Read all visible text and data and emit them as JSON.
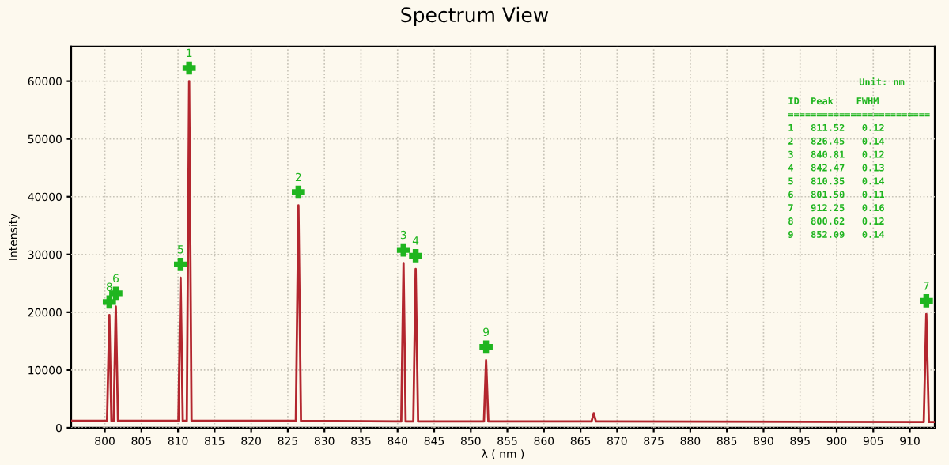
{
  "chart_data": {
    "type": "line",
    "title": "Spectrum View",
    "xlabel": "λ ( nm )",
    "ylabel": "Intensity",
    "xlim": [
      795.4,
      913.4
    ],
    "xticks": [
      800,
      805,
      810,
      815,
      820,
      825,
      830,
      835,
      840,
      845,
      850,
      855,
      860,
      865,
      870,
      875,
      880,
      885,
      890,
      895,
      900,
      905,
      910
    ],
    "ylim": [
      0,
      66000
    ],
    "yticks": [
      0,
      10000,
      20000,
      30000,
      40000,
      50000,
      60000
    ],
    "grid": true,
    "marker": "none",
    "line_style": "solid",
    "series": [
      {
        "color": "#b3262e",
        "x": [
          795.4,
          800.3,
          800.62,
          800.9,
          801.2,
          801.5,
          801.8,
          810.05,
          810.35,
          810.65,
          811.2,
          811.52,
          811.85,
          826.1,
          826.45,
          826.8,
          840.5,
          840.81,
          841.1,
          842.15,
          842.47,
          842.8,
          851.8,
          852.09,
          852.4,
          866.5,
          866.8,
          867.1,
          911.9,
          912.25,
          912.6,
          913.4
        ],
        "values": [
          1200,
          1200,
          19500,
          1200,
          1200,
          21000,
          1200,
          1200,
          26000,
          1200,
          1200,
          60000,
          1200,
          1200,
          38500,
          1200,
          1100,
          28500,
          1100,
          1100,
          27500,
          1100,
          1100,
          11700,
          1100,
          1100,
          2500,
          1100,
          1000,
          19700,
          1000,
          1000
        ]
      }
    ],
    "annotations": [
      {
        "text": "1",
        "x": 811.52,
        "y": 60000
      },
      {
        "text": "2",
        "x": 826.45,
        "y": 38500
      },
      {
        "text": "3",
        "x": 840.81,
        "y": 28500
      },
      {
        "text": "4",
        "x": 842.47,
        "y": 27500
      },
      {
        "text": "5",
        "x": 810.35,
        "y": 26000
      },
      {
        "text": "6",
        "x": 801.5,
        "y": 21000
      },
      {
        "text": "7",
        "x": 912.25,
        "y": 19700
      },
      {
        "text": "8",
        "x": 800.62,
        "y": 19500
      },
      {
        "text": "9",
        "x": 852.09,
        "y": 11700
      },
      "Unit: nm",
      "ID  Peak    FWHM",
      "=========================",
      "1   811.52   0.12",
      "2   826.45   0.14",
      "3   840.81   0.12",
      "4   842.47   0.13",
      "5   810.35   0.14",
      "6   801.50   0.11",
      "7   912.25   0.16",
      "8   800.62   0.12",
      "9   852.09   0.14"
    ]
  }
}
